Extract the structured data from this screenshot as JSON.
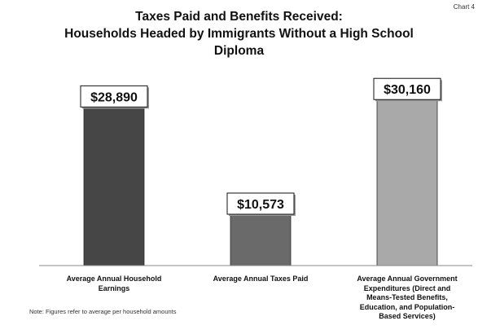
{
  "corner_label": "Chart 4",
  "note": "Note: Figures refer to average per household amounts",
  "chart_data": {
    "type": "bar",
    "title": [
      "Taxes Paid and Benefits Received:",
      "Households Headed by Immigrants Without a High School",
      "Diploma"
    ],
    "categories": [
      [
        "Average Annual Household",
        "Earnings"
      ],
      [
        "Average Annual Taxes Paid"
      ],
      [
        "Average Annual Government",
        "Expenditures (Direct and",
        "Means-Tested Benefits,",
        "Education, and Population-",
        "Based Services)"
      ]
    ],
    "values": [
      28890,
      10573,
      30160
    ],
    "data_labels": [
      "$28,890",
      "$10,573",
      "$30,160"
    ],
    "bar_colors": [
      "#464646",
      "#6a6a6a",
      "#a9a9a9"
    ],
    "ylim": [
      0,
      32000
    ],
    "grid": false,
    "xlabel": "",
    "ylabel": ""
  }
}
